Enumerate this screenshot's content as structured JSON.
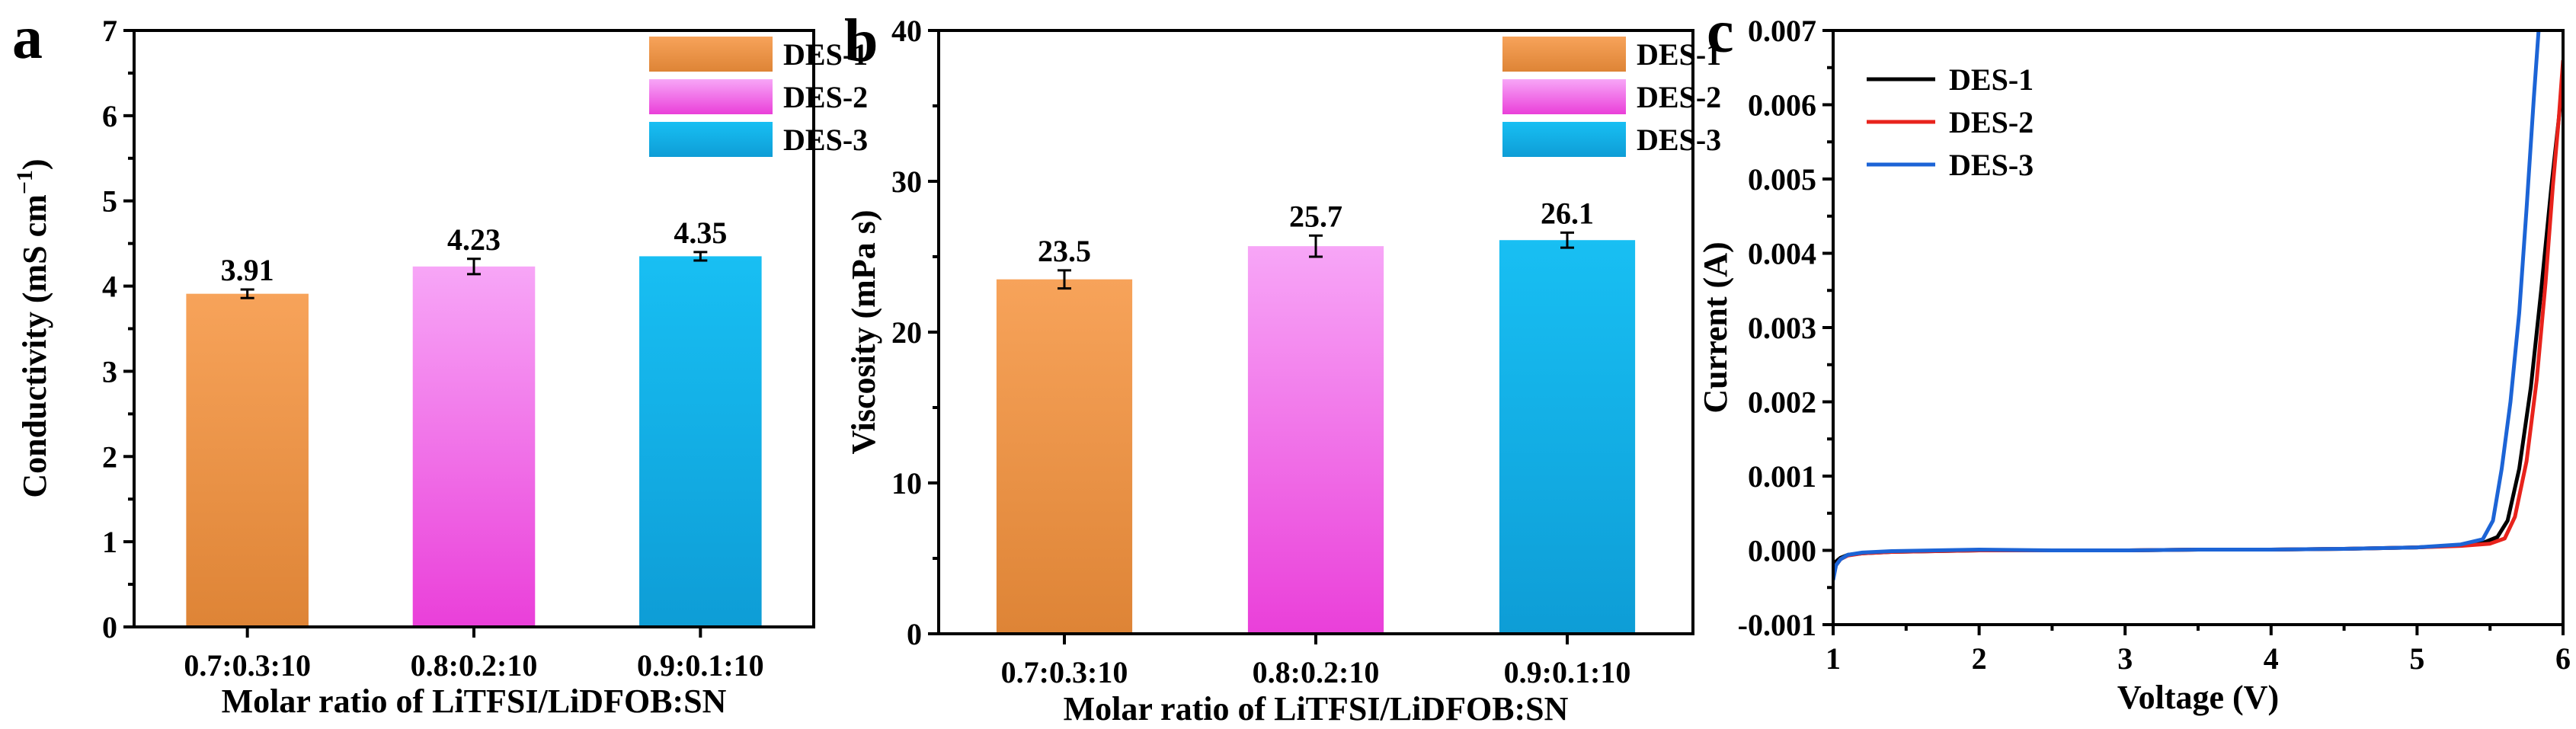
{
  "chart_data": [
    {
      "panel": "a",
      "type": "bar",
      "xlabel": "Molar ratio of LiTFSI/LiDFOB:SN",
      "ylabel_main": "Conductivity (mS cm",
      "ylabel_sup": "−1",
      "ylabel_end": ")",
      "ylim": [
        0,
        7
      ],
      "yticks": [
        "0",
        "1",
        "2",
        "3",
        "4",
        "5",
        "6",
        "7"
      ],
      "categories": [
        "0.7:0.3:10",
        "0.8:0.2:10",
        "0.9:0.1:10"
      ],
      "values": [
        3.91,
        4.23,
        4.35
      ],
      "value_labels": [
        "3.91",
        "4.23",
        "4.35"
      ],
      "errors": [
        0.05,
        0.09,
        0.05
      ],
      "legend": [
        "DES-1",
        "DES-2",
        "DES-3"
      ],
      "legend_position": "top-right",
      "colors": [
        {
          "top": "#f7a35a",
          "bottom": "#de8436"
        },
        {
          "top": "#f7a6f7",
          "bottom": "#ea3fd9"
        },
        {
          "top": "#18bff3",
          "bottom": "#0e9dd6"
        }
      ]
    },
    {
      "panel": "b",
      "type": "bar",
      "xlabel": "Molar ratio of LiTFSI/LiDFOB:SN",
      "ylabel": "Viscosity (mPa s)",
      "ylim": [
        0,
        40
      ],
      "yticks": [
        "0",
        "10",
        "20",
        "30",
        "40"
      ],
      "categories": [
        "0.7:0.3:10",
        "0.8:0.2:10",
        "0.9:0.1:10"
      ],
      "values": [
        23.5,
        25.7,
        26.1
      ],
      "value_labels": [
        "23.5",
        "25.7",
        "26.1"
      ],
      "errors": [
        0.6,
        0.7,
        0.5
      ],
      "legend": [
        "DES-1",
        "DES-2",
        "DES-3"
      ],
      "legend_position": "top-right",
      "colors": [
        {
          "top": "#f7a35a",
          "bottom": "#de8436"
        },
        {
          "top": "#f7a6f7",
          "bottom": "#ea3fd9"
        },
        {
          "top": "#18bff3",
          "bottom": "#0e9dd6"
        }
      ]
    },
    {
      "panel": "c",
      "type": "line",
      "xlabel": "Voltage (V)",
      "ylabel": "Current (A)",
      "xlim": [
        1,
        6
      ],
      "ylim": [
        -0.001,
        0.007
      ],
      "xticks": [
        "1",
        "2",
        "3",
        "4",
        "5",
        "6"
      ],
      "yticks": [
        "-0.001",
        "0.000",
        "0.001",
        "0.002",
        "0.003",
        "0.004",
        "0.005",
        "0.006",
        "0.007"
      ],
      "legend_position": "top-left",
      "series": [
        {
          "name": "DES-1",
          "color": "#000000",
          "x": [
            1.0,
            1.02,
            1.05,
            1.1,
            1.2,
            1.4,
            1.7,
            2.0,
            2.5,
            3.0,
            3.5,
            4.0,
            4.5,
            5.0,
            5.3,
            5.45,
            5.55,
            5.62,
            5.7,
            5.78,
            5.85,
            5.92,
            5.97,
            6.0
          ],
          "y": [
            -0.0003,
            -0.00015,
            -0.0001,
            -6e-05,
            -4e-05,
            -2e-05,
            -1e-05,
            0.0,
            0.0,
            0.0,
            1e-05,
            1e-05,
            2e-05,
            4e-05,
            7e-05,
            0.0001,
            0.00018,
            0.0004,
            0.0011,
            0.0022,
            0.0035,
            0.0049,
            0.0058,
            0.0064
          ]
        },
        {
          "name": "DES-2",
          "color": "#e8231c",
          "x": [
            1.0,
            1.02,
            1.05,
            1.1,
            1.2,
            1.4,
            1.7,
            2.0,
            2.5,
            3.0,
            3.5,
            4.0,
            4.5,
            5.0,
            5.3,
            5.5,
            5.6,
            5.67,
            5.75,
            5.82,
            5.88,
            5.93,
            5.97,
            6.0
          ],
          "y": [
            -0.00035,
            -0.0002,
            -0.00012,
            -7e-05,
            -4e-05,
            -2e-05,
            -1e-05,
            0.0,
            0.0,
            0.0,
            1e-05,
            1e-05,
            2e-05,
            4e-05,
            6e-05,
            9e-05,
            0.00016,
            0.00045,
            0.0012,
            0.0023,
            0.0036,
            0.0049,
            0.0058,
            0.0066
          ]
        },
        {
          "name": "DES-3",
          "color": "#1c64d6",
          "x": [
            1.0,
            1.02,
            1.05,
            1.1,
            1.2,
            1.4,
            1.7,
            2.0,
            2.5,
            3.0,
            3.5,
            4.0,
            4.5,
            5.0,
            5.3,
            5.45,
            5.52,
            5.58,
            5.64,
            5.7,
            5.75,
            5.8,
            5.84
          ],
          "y": [
            -0.0004,
            -0.0002,
            -0.00012,
            -6e-05,
            -3e-05,
            -1e-05,
            0.0,
            1e-05,
            0.0,
            0.0,
            1e-05,
            1e-05,
            2e-05,
            4e-05,
            8e-05,
            0.00015,
            0.0004,
            0.0011,
            0.002,
            0.0032,
            0.0046,
            0.0061,
            0.0072
          ]
        }
      ]
    }
  ],
  "panel_labels": [
    "a",
    "b",
    "c"
  ]
}
